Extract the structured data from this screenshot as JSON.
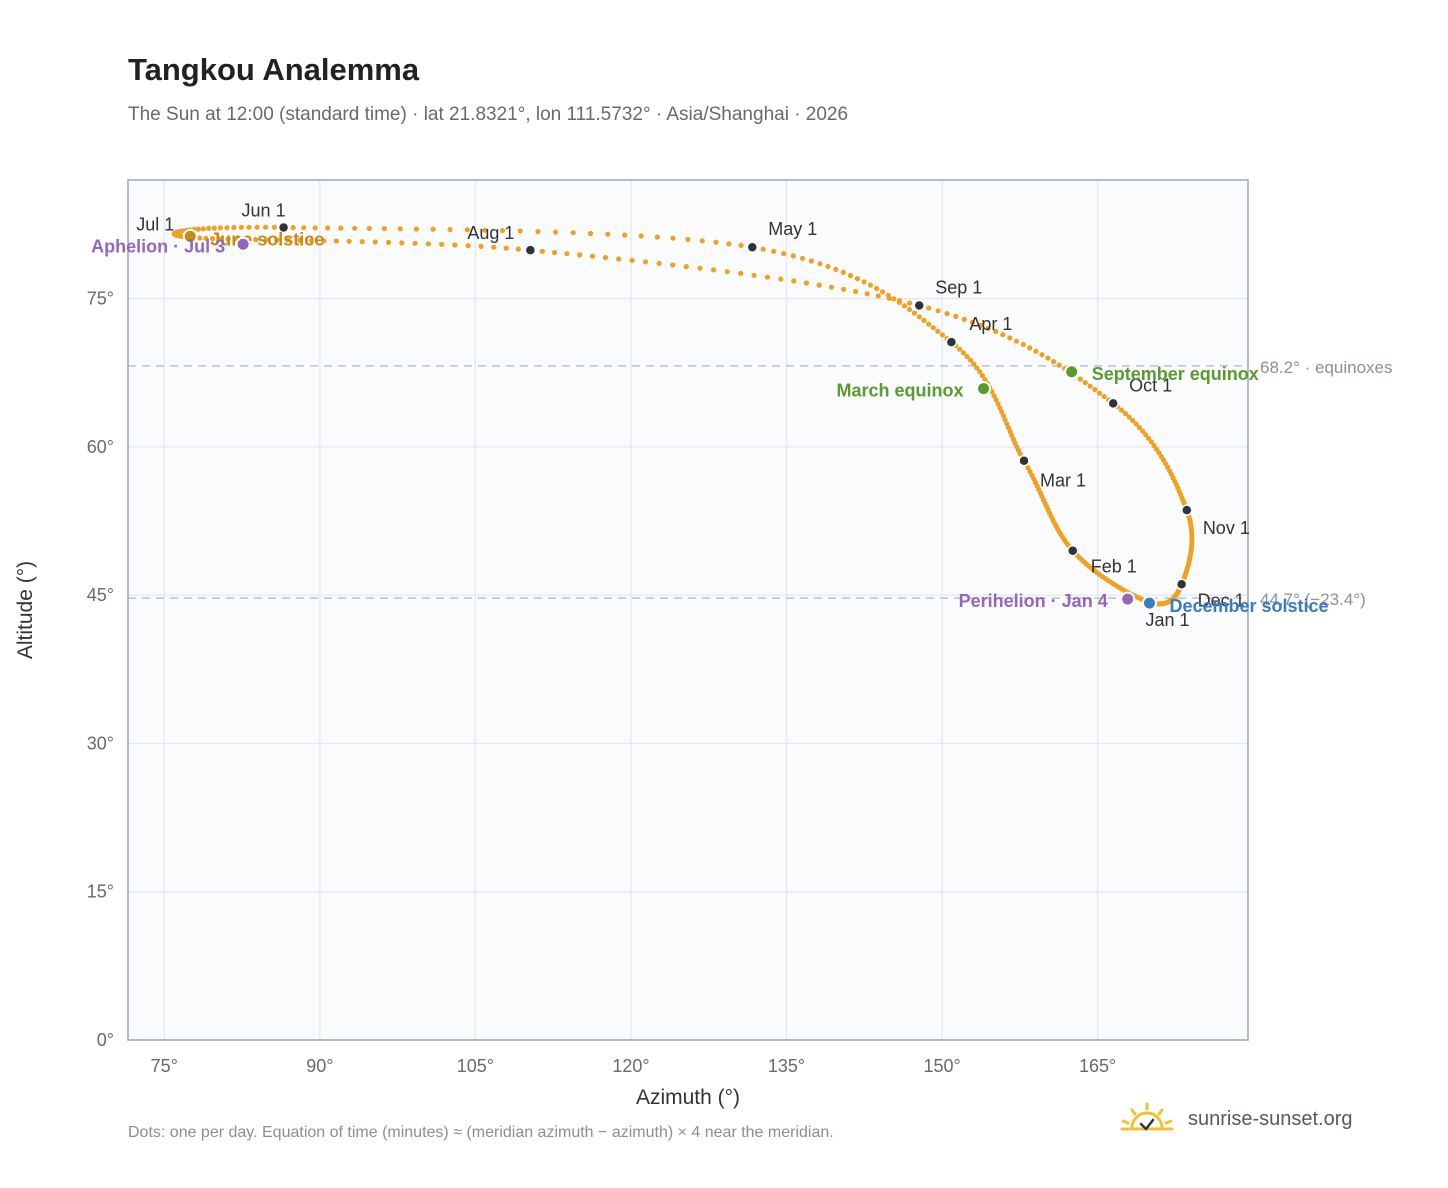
{
  "page": {
    "title": "Tangkou Analemma",
    "subtitle": "The Sun at 12:00 (standard time) · lat 21.8321°, lon 111.5732° · Asia/Shanghai · 2026",
    "footnote": "Dots: one per day. Equation of time (minutes) ≈ (meridian azimuth − azimuth) × 4 near the meridian.",
    "brand": "sunrise-sunset.org"
  },
  "colors": {
    "curve": "#f0a124",
    "month_dot": "#2f343b",
    "equinox": "#5a9a2f",
    "june_solstice": "#c88a14",
    "december_solstice": "#3a7cc0",
    "apsis": "#9467bd",
    "plot_bg": "#f9fbfd",
    "grid": "#e3e8ee",
    "ref_line": "#b9c4cf",
    "logo": "#f2c12e"
  },
  "icons": {
    "brand_logo": "sun-rising-icon"
  },
  "chart_data": {
    "type": "scatter",
    "xlabel": "Azimuth (°)",
    "ylabel": "Altitude (°)",
    "xlim": [
      71.5,
      179.5
    ],
    "ylim": [
      0,
      87
    ],
    "xticks": [
      75,
      90,
      105,
      120,
      135,
      150,
      165
    ],
    "yticks": [
      0,
      15,
      30,
      45,
      60,
      75
    ],
    "tick_suffix": "°",
    "grid": true,
    "reference_lines": [
      {
        "y": 68.2,
        "label": "68.2° · equinoxes"
      },
      {
        "y": 44.7,
        "label": "44.7° (−23.4°)"
      }
    ],
    "series": [
      {
        "dates": [
          "Jan 1",
          "Feb 1",
          "Mar 1",
          "Apr 1",
          "May 1",
          "Jun 1",
          "Jul 1",
          "Aug 1",
          "Sep 1",
          "Oct 1",
          "Nov 1",
          "Dec 1"
        ],
        "azimuth": [
          170.0,
          162.6,
          157.9,
          150.9,
          131.7,
          86.5,
          77.5,
          110.3,
          147.8,
          166.5,
          173.6,
          173.1
        ],
        "altitude": [
          44.3,
          49.5,
          58.6,
          70.6,
          80.2,
          82.2,
          81.2,
          79.9,
          74.3,
          64.4,
          53.6,
          46.1
        ]
      }
    ],
    "month_labels": [
      "Jan 1",
      "Feb 1",
      "Mar 1",
      "Apr 1",
      "May 1",
      "Jun 1",
      "Jul 1",
      "Aug 1",
      "Sep 1",
      "Oct 1",
      "Nov 1",
      "Dec 1"
    ],
    "events": [
      {
        "label": "March equinox",
        "azimuth": 154.0,
        "altitude": 65.9,
        "kind": "equinox"
      },
      {
        "label": "September equinox",
        "azimuth": 162.5,
        "altitude": 67.6,
        "kind": "equinox"
      },
      {
        "label": "June solstice",
        "azimuth": 77.5,
        "altitude": 81.3,
        "kind": "june_solstice"
      },
      {
        "label": "December solstice",
        "azimuth": 170.0,
        "altitude": 44.2,
        "kind": "december_solstice"
      },
      {
        "label": "Aphelion · Jul 3",
        "azimuth": 82.6,
        "altitude": 80.5,
        "kind": "apsis"
      },
      {
        "label": "Perihelion · Jan 4",
        "azimuth": 167.9,
        "altitude": 44.6,
        "kind": "apsis"
      }
    ]
  }
}
